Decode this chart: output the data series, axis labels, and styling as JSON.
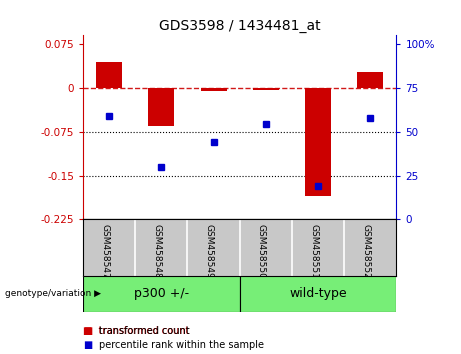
{
  "title": "GDS3598 / 1434481_at",
  "samples": [
    "GSM458547",
    "GSM458548",
    "GSM458549",
    "GSM458550",
    "GSM458551",
    "GSM458552"
  ],
  "red_bars": [
    0.045,
    -0.065,
    -0.005,
    -0.003,
    -0.185,
    0.028
  ],
  "blue_dots_left": [
    -0.048,
    -0.135,
    -0.092,
    -0.062,
    -0.168,
    -0.052
  ],
  "ylim_left": [
    -0.225,
    0.09
  ],
  "yticks_left": [
    0.075,
    0.0,
    -0.075,
    -0.15,
    -0.225
  ],
  "ytick_labels_left": [
    "0.075",
    "0",
    "-0.075",
    "-0.15",
    "-0.225"
  ],
  "ylim_right": [
    0,
    105
  ],
  "yticks_right": [
    100,
    75,
    50,
    25,
    0
  ],
  "ytick_labels_right": [
    "100%",
    "75",
    "50",
    "25",
    "0"
  ],
  "hlines_dotted": [
    -0.075,
    -0.15
  ],
  "dashed_hline_y": 0.0,
  "group_p300_label": "p300 +/-",
  "group_wt_label": "wild-type",
  "group_color": "#77EE77",
  "group_bg_color": "#C8C8C8",
  "genotype_label": "genotype/variation",
  "legend_red_label": "transformed count",
  "legend_blue_label": "percentile rank within the sample",
  "bar_color": "#CC0000",
  "dot_color": "#0000CC",
  "bar_width": 0.5,
  "background_color": "#FFFFFF",
  "title_fontsize": 10,
  "axis_fontsize": 7,
  "tick_fontsize": 7.5
}
